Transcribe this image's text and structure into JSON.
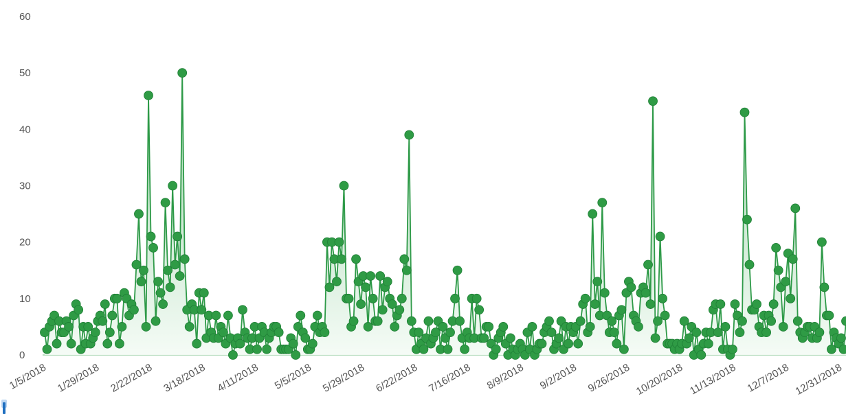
{
  "colors": {
    "series": "#2e9a48",
    "point": "#2f9b45",
    "area_top": "#8fce9e",
    "area_bottom": "#f4fbf5",
    "tick_text": "#555555",
    "accent_marker": "#1f6fc0"
  },
  "chart_data": {
    "type": "area",
    "title": "",
    "xlabel": "",
    "ylabel": "",
    "ylim": [
      0,
      60
    ],
    "yticks": [
      "0",
      "10",
      "20",
      "30",
      "40",
      "50",
      "60"
    ],
    "xticks": [
      "1/5/2018",
      "1/29/2018",
      "2/22/2018",
      "3/18/2018",
      "4/11/2018",
      "5/5/2018",
      "5/29/2018",
      "6/22/2018",
      "7/16/2018",
      "8/9/2018",
      "9/2/2018",
      "9/26/2018",
      "10/20/2018",
      "11/13/2018",
      "12/7/2018",
      "12/31/2018"
    ],
    "markers": true,
    "series": [
      {
        "values": [
          4,
          1,
          5,
          6,
          7,
          2,
          6,
          4,
          4,
          6,
          5,
          2,
          7,
          9,
          8,
          1,
          5,
          2,
          5,
          2,
          3,
          4,
          6,
          7,
          6,
          9,
          2,
          4,
          7,
          10,
          10,
          2,
          5,
          11,
          10,
          7,
          9,
          8,
          16,
          25,
          13,
          15,
          5,
          46,
          21,
          19,
          6,
          13,
          11,
          9,
          27,
          15,
          12,
          30,
          16,
          21,
          14,
          50,
          17,
          8,
          5,
          9,
          8,
          2,
          11,
          8,
          11,
          3,
          7,
          4,
          3,
          7,
          3,
          5,
          4,
          2,
          7,
          3,
          0,
          2,
          3,
          2,
          8,
          4,
          3,
          1,
          3,
          5,
          1,
          3,
          5,
          4,
          1,
          3,
          4,
          5,
          5,
          4,
          1,
          1,
          1,
          1,
          3,
          2,
          0,
          5,
          7,
          4,
          3,
          1,
          1,
          2,
          5,
          7,
          4,
          5,
          4,
          20,
          12,
          20,
          17,
          13,
          20,
          17,
          30,
          10,
          10,
          5,
          6,
          17,
          13,
          9,
          14,
          12,
          5,
          14,
          10,
          6,
          6,
          14,
          8,
          12,
          13,
          10,
          9,
          5,
          7,
          8,
          10,
          17,
          15,
          39,
          6,
          4,
          1,
          4,
          2,
          1,
          3,
          6,
          2,
          3,
          4,
          6,
          1,
          5,
          3,
          1,
          4,
          6,
          10,
          15,
          6,
          3,
          1,
          4,
          3,
          10,
          3,
          10,
          8,
          3,
          3,
          5,
          5,
          2,
          0,
          1,
          3,
          4,
          5,
          2,
          0,
          3,
          1,
          0,
          1,
          2,
          1,
          0,
          4,
          1,
          5,
          0,
          1,
          2,
          2,
          4,
          5,
          6,
          4,
          1,
          2,
          3,
          6,
          1,
          5,
          2,
          5,
          4,
          5,
          2,
          6,
          9,
          10,
          4,
          5,
          25,
          9,
          13,
          7,
          27,
          11,
          7,
          4,
          6,
          4,
          2,
          7,
          8,
          1,
          11,
          13,
          12,
          7,
          6,
          5,
          11,
          12,
          11,
          16,
          9,
          45,
          3,
          6,
          21,
          10,
          7,
          2,
          2,
          2,
          1,
          2,
          1,
          2,
          6,
          2,
          3,
          5,
          0,
          4,
          1,
          0,
          2,
          4,
          2,
          4,
          8,
          9,
          4,
          9,
          1,
          5,
          1,
          0,
          1,
          9,
          7,
          4,
          6,
          43,
          24,
          16,
          8,
          8,
          9,
          5,
          4,
          7,
          4,
          7,
          6,
          9,
          19,
          15,
          12,
          5,
          13,
          18,
          10,
          17,
          26,
          6,
          4,
          3,
          4,
          5,
          5,
          3,
          5,
          3,
          4,
          20,
          12,
          7,
          7,
          1,
          4,
          3,
          2,
          3,
          1,
          6
        ]
      }
    ]
  }
}
